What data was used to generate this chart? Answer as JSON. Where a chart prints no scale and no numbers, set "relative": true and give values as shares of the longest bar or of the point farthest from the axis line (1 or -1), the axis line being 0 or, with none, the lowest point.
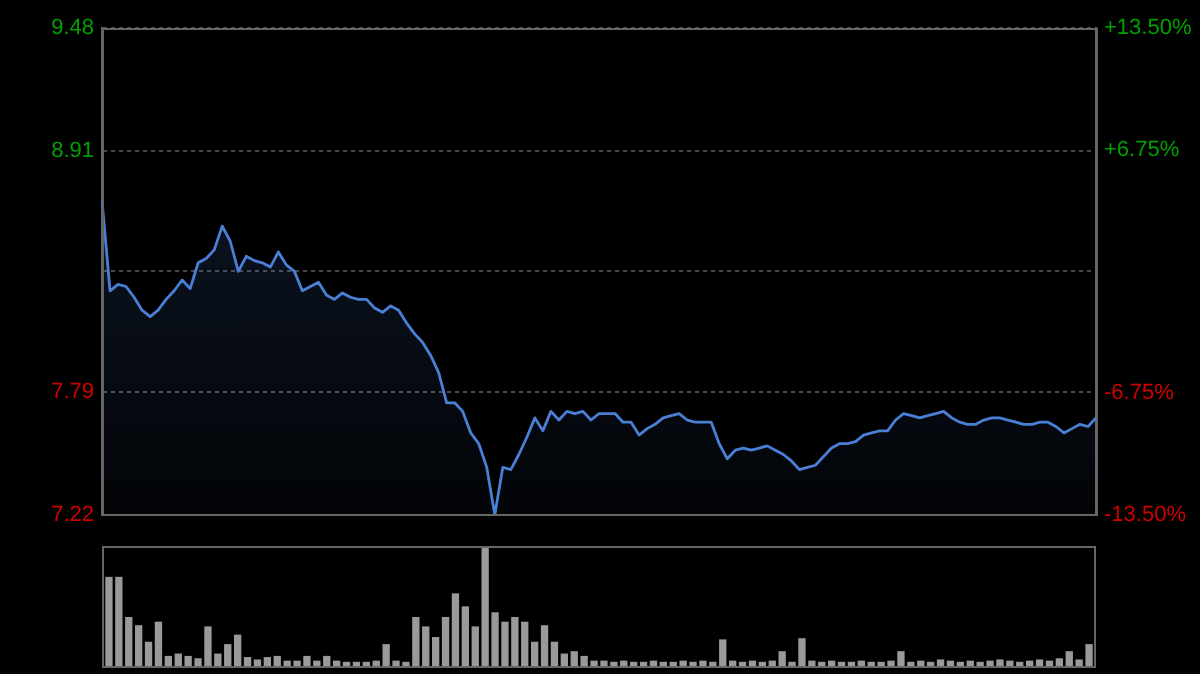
{
  "chart_data": [
    {
      "type": "area",
      "grid": "y",
      "marker": "none",
      "line_style": "solid",
      "categories": [
        null,
        null,
        null,
        null,
        null,
        null,
        null,
        null,
        null,
        null,
        null,
        null,
        null,
        null,
        null,
        null,
        null,
        null,
        null,
        null,
        null,
        null,
        null,
        null,
        null,
        null,
        null,
        null,
        null,
        null,
        null,
        null,
        null,
        null,
        null,
        null,
        null,
        null,
        null,
        null,
        null,
        null,
        null,
        null,
        null,
        null,
        null,
        null,
        null,
        null,
        null,
        null,
        null,
        null,
        null,
        null,
        null,
        null,
        null,
        null,
        null,
        null,
        null,
        null,
        null,
        null,
        null,
        null,
        null,
        null,
        null,
        null,
        null,
        null,
        null,
        null,
        null,
        null,
        null,
        null,
        null,
        null,
        null,
        null,
        null,
        null,
        null,
        null,
        null,
        null,
        null,
        null,
        null,
        null,
        null,
        null,
        null,
        null,
        null,
        null,
        null,
        null,
        null,
        null,
        null,
        null,
        null,
        null,
        null,
        null,
        null,
        null,
        null,
        null,
        null,
        null,
        null,
        null,
        null,
        null,
        null,
        null,
        null,
        null,
        null
      ],
      "ylim": [
        7.22,
        9.48
      ],
      "yticks": [
        7.22,
        7.79,
        {
          "value": 8.35,
          "label": null
        },
        8.91,
        9.48
      ],
      "y2lim": [
        -13.5,
        13.5
      ],
      "y2ticks": [
        {
          "value": -13.5,
          "label": "-13.50%"
        },
        {
          "value": -6.75,
          "label": "-6.75%"
        },
        {
          "value": 0,
          "label": null
        },
        {
          "value": 6.75,
          "label": "+6.75%"
        },
        {
          "value": 13.5,
          "label": "+13.50%"
        }
      ],
      "series": [
        {
          "color": "#4a7fd6",
          "values": [
            8.68,
            8.26,
            8.29,
            8.28,
            8.23,
            8.17,
            8.14,
            8.17,
            8.22,
            8.26,
            8.31,
            8.27,
            8.39,
            8.41,
            8.45,
            8.56,
            8.49,
            8.35,
            8.42,
            8.4,
            8.39,
            8.37,
            8.44,
            8.38,
            8.35,
            8.26,
            8.28,
            8.3,
            8.24,
            8.22,
            8.25,
            8.23,
            8.22,
            8.22,
            8.18,
            8.16,
            8.19,
            8.17,
            8.11,
            8.06,
            8.02,
            7.96,
            7.88,
            7.74,
            7.74,
            7.7,
            7.6,
            7.55,
            7.44,
            7.22,
            7.44,
            7.43,
            7.5,
            7.58,
            7.67,
            7.61,
            7.7,
            7.66,
            7.7,
            7.69,
            7.7,
            7.66,
            7.69,
            7.69,
            7.69,
            7.65,
            7.65,
            7.59,
            7.62,
            7.64,
            7.67,
            7.68,
            7.69,
            7.66,
            7.65,
            7.65,
            7.65,
            7.55,
            7.48,
            7.52,
            7.53,
            7.52,
            7.53,
            7.54,
            7.52,
            7.5,
            7.47,
            7.43,
            7.44,
            7.45,
            7.49,
            7.53,
            7.55,
            7.55,
            7.56,
            7.59,
            7.6,
            7.61,
            7.61,
            7.66,
            7.69,
            7.68,
            7.67,
            7.68,
            7.69,
            7.7,
            7.67,
            7.65,
            7.64,
            7.64,
            7.66,
            7.67,
            7.67,
            7.66,
            7.65,
            7.64,
            7.64,
            7.65,
            7.65,
            7.63,
            7.6,
            7.62,
            7.64,
            7.63,
            7.67
          ]
        }
      ]
    },
    {
      "type": "bar",
      "relative": true,
      "color": "#9a9a9a",
      "categories": [
        null,
        null,
        null,
        null,
        null,
        null,
        null,
        null,
        null,
        null,
        null,
        null,
        null,
        null,
        null,
        null,
        null,
        null,
        null,
        null,
        null,
        null,
        null,
        null,
        null,
        null,
        null,
        null,
        null,
        null,
        null,
        null,
        null,
        null,
        null,
        null,
        null,
        null,
        null,
        null,
        null,
        null,
        null,
        null,
        null,
        null,
        null,
        null,
        null,
        null,
        null,
        null,
        null,
        null,
        null,
        null,
        null,
        null,
        null,
        null,
        null,
        null,
        null,
        null,
        null,
        null,
        null,
        null,
        null,
        null,
        null,
        null,
        null,
        null,
        null,
        null,
        null,
        null,
        null,
        null,
        null,
        null,
        null,
        null,
        null,
        null,
        null,
        null,
        null,
        null,
        null,
        null,
        null,
        null,
        null,
        null,
        null,
        null,
        null,
        null
      ],
      "values": [
        0.75,
        0.75,
        0.41,
        0.34,
        0.2,
        0.37,
        0.08,
        0.1,
        0.08,
        0.06,
        0.33,
        0.1,
        0.18,
        0.26,
        0.07,
        0.05,
        0.07,
        0.08,
        0.04,
        0.04,
        0.08,
        0.04,
        0.08,
        0.04,
        0.03,
        0.03,
        0.03,
        0.04,
        0.18,
        0.04,
        0.03,
        0.41,
        0.33,
        0.24,
        0.41,
        0.61,
        0.5,
        0.33,
        1.0,
        0.45,
        0.37,
        0.41,
        0.37,
        0.2,
        0.34,
        0.2,
        0.1,
        0.12,
        0.08,
        0.04,
        0.04,
        0.03,
        0.04,
        0.03,
        0.03,
        0.04,
        0.03,
        0.03,
        0.04,
        0.03,
        0.04,
        0.03,
        0.22,
        0.04,
        0.03,
        0.04,
        0.03,
        0.04,
        0.12,
        0.03,
        0.23,
        0.04,
        0.03,
        0.04,
        0.03,
        0.03,
        0.04,
        0.03,
        0.03,
        0.04,
        0.12,
        0.03,
        0.04,
        0.03,
        0.05,
        0.04,
        0.03,
        0.04,
        0.03,
        0.04,
        0.05,
        0.04,
        0.03,
        0.04,
        0.05,
        0.04,
        0.06,
        0.12,
        0.05,
        0.18
      ]
    }
  ]
}
